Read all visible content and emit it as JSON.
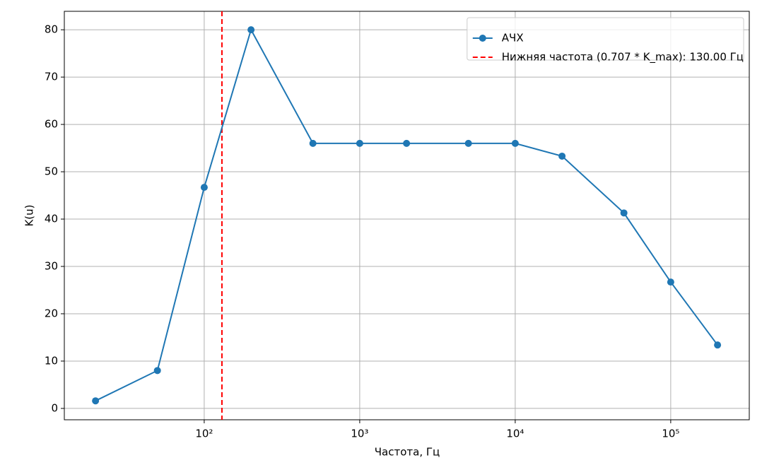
{
  "chart_data": {
    "type": "line",
    "x_label": "Частота, Гц",
    "y_label": "K(u)",
    "x": [
      20,
      50,
      100,
      200,
      500,
      1000,
      2000,
      5000,
      10000,
      20000,
      50000,
      100000,
      200000
    ],
    "series": [
      {
        "name": "АЧХ",
        "color": "#1f77b4",
        "values": [
          1.6,
          8.0,
          46.7,
          80,
          56,
          56,
          56,
          56,
          56,
          53.3,
          41.3,
          26.7,
          13.4
        ]
      }
    ],
    "vlines": [
      {
        "x": 130,
        "color": "#ff0000",
        "style": "dashed",
        "label": "Нижняя частота (0.707 * K_max): 130.00 Гц"
      }
    ],
    "xscale": "log",
    "xlim": [
      12.6,
      320000
    ],
    "ylim": [
      -2.4,
      83.9
    ],
    "xticks": [
      {
        "value": 100,
        "label": "10²"
      },
      {
        "value": 1000,
        "label": "10³"
      },
      {
        "value": 10000,
        "label": "10⁴"
      },
      {
        "value": 100000,
        "label": "10⁵"
      }
    ],
    "yticks": [
      0,
      10,
      20,
      30,
      40,
      50,
      60,
      70,
      80
    ],
    "grid": true,
    "legend": "upper-right"
  }
}
